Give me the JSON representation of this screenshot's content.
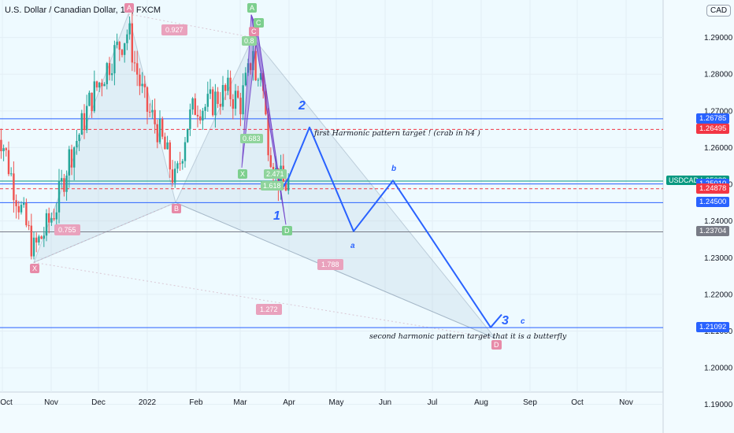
{
  "header": {
    "title": "U.S. Dollar / Canadian Dollar, 1D, FXCM",
    "currency_badge": "CAD"
  },
  "chart_data": {
    "type": "line",
    "x_tick_labels": [
      "Oct",
      "Nov",
      "Dec",
      "2022",
      "Feb",
      "Mar",
      "Apr",
      "May",
      "Jun",
      "Jul",
      "Aug",
      "Sep",
      "Oct",
      "Nov"
    ],
    "y_ticks": [
      1.19,
      1.2,
      1.21,
      1.22,
      1.23,
      1.24,
      1.25,
      1.26,
      1.27,
      1.28,
      1.29
    ],
    "ylim": [
      1.188,
      1.2985
    ],
    "candles": {
      "start_date": "2021-09-27",
      "anchor_closes": [
        [
          "2021-09-27",
          1.266
        ],
        [
          "2021-10-01",
          1.262
        ],
        [
          "2021-10-08",
          1.25
        ],
        [
          "2021-10-15",
          1.24
        ],
        [
          "2021-10-21",
          1.232
        ],
        [
          "2021-10-29",
          1.238
        ],
        [
          "2021-11-05",
          1.245
        ],
        [
          "2021-11-12",
          1.257
        ],
        [
          "2021-11-19",
          1.264
        ],
        [
          "2021-11-26",
          1.273
        ],
        [
          "2021-12-03",
          1.279
        ],
        [
          "2021-12-10",
          1.285
        ],
        [
          "2021-12-16",
          1.289
        ],
        [
          "2021-12-20",
          1.292
        ],
        [
          "2021-12-24",
          1.283
        ],
        [
          "2021-12-31",
          1.271
        ],
        [
          "2022-01-07",
          1.266
        ],
        [
          "2022-01-14",
          1.257
        ],
        [
          "2022-01-19",
          1.25
        ],
        [
          "2022-01-26",
          1.266
        ],
        [
          "2022-02-01",
          1.272
        ],
        [
          "2022-02-08",
          1.271
        ],
        [
          "2022-02-15",
          1.274
        ],
        [
          "2022-02-22",
          1.275
        ],
        [
          "2022-03-01",
          1.272
        ],
        [
          "2022-03-07",
          1.281
        ],
        [
          "2022-03-09",
          1.289
        ],
        [
          "2022-03-11",
          1.276
        ],
        [
          "2022-03-14",
          1.282
        ],
        [
          "2022-03-18",
          1.264
        ],
        [
          "2022-03-24",
          1.252
        ],
        [
          "2022-03-28",
          1.25
        ],
        [
          "2022-03-31",
          1.25
        ],
        [
          "2022-04-01",
          1.2509
        ]
      ]
    },
    "price_levels": [
      {
        "value": 1.26785,
        "label": "1.26785",
        "color": "#2962ff",
        "style": "solid"
      },
      {
        "value": 1.26495,
        "label": "1.26495",
        "color": "#f23645",
        "style": "dashed"
      },
      {
        "value": 1.25088,
        "label": "1.25088",
        "color": "#089981",
        "style": "solid",
        "tag": "USDCAD"
      },
      {
        "value": 1.2501,
        "label": "1.25010",
        "color": "#2962ff",
        "style": "solid"
      },
      {
        "value": 1.24878,
        "label": "1.24878",
        "color": "#f23645",
        "style": "dashed"
      },
      {
        "value": 1.245,
        "label": "1.24500",
        "color": "#2962ff",
        "style": "solid"
      },
      {
        "value": 1.23704,
        "label": "1.23704",
        "color": "#787b86",
        "style": "solid"
      },
      {
        "value": 1.21092,
        "label": "1.21092",
        "color": "#2962ff",
        "style": "solid"
      }
    ],
    "big_pattern_points": [
      {
        "label": "X",
        "date": "2021-10-21",
        "value": 1.2287
      },
      {
        "label": "A",
        "date": "2021-12-20",
        "value": 1.2964
      },
      {
        "label": "B",
        "date": "2022-01-19",
        "value": 1.245
      },
      {
        "label": "C",
        "date": "2022-03-09",
        "value": 1.29
      },
      {
        "label": "D",
        "date": "2022-08-10",
        "value": 1.208
      }
    ],
    "big_pattern_ratios": [
      {
        "label": "0.927",
        "date": "2022-01-17",
        "value": 1.292
      },
      {
        "label": "0.755",
        "date": "2021-11-10",
        "value": 1.2375
      },
      {
        "label": "1.788",
        "date": "2022-04-26",
        "value": 1.2282
      },
      {
        "label": "1.272",
        "date": "2022-03-18",
        "value": 1.2159
      }
    ],
    "small_pattern_points": [
      {
        "label": "A",
        "date": "2022-03-08",
        "value": 1.2962
      },
      {
        "label": "X",
        "date": "2022-03-02",
        "value": 1.2545
      },
      {
        "label": "C",
        "date": "2022-03-12",
        "value": 1.292
      },
      {
        "label": "D",
        "date": "2022-03-30",
        "value": 1.239
      }
    ],
    "small_pattern_ratios": [
      {
        "label": "0.8",
        "date": "2022-03-08",
        "value": 1.2888
      },
      {
        "label": "0.683",
        "date": "2022-03-07",
        "value": 1.2623
      },
      {
        "label": "2.471",
        "date": "2022-03-22",
        "value": 1.2525
      },
      {
        "label": "1.618",
        "date": "2022-03-20",
        "value": 1.2493
      }
    ],
    "projection": [
      [
        "2022-03-28",
        1.249
      ],
      [
        "2022-04-01",
        1.252
      ],
      [
        "2022-04-14",
        1.2655
      ],
      [
        "2022-05-12",
        1.2372
      ],
      [
        "2022-06-06",
        1.251
      ],
      [
        "2022-08-07",
        1.211
      ],
      [
        "2022-08-14",
        1.2145
      ]
    ],
    "wave_labels": [
      {
        "label": "2",
        "date": "2022-04-09",
        "value": 1.271,
        "size": "big"
      },
      {
        "label": "1",
        "date": "2022-03-24",
        "value": 1.241,
        "size": "big"
      },
      {
        "label": "3",
        "date": "2022-08-16",
        "value": 1.2125,
        "size": "big"
      },
      {
        "label": "b",
        "date": "2022-06-07",
        "value": 1.254,
        "size": "small"
      },
      {
        "label": "a",
        "date": "2022-05-12",
        "value": 1.233,
        "size": "small"
      },
      {
        "label": "c",
        "date": "2022-08-28",
        "value": 1.2125,
        "size": "small"
      }
    ],
    "annotations": [
      {
        "text": "first Harmonic pattern target ! (crab in h4 )",
        "date": "2022-04-17",
        "value": 1.2638
      },
      {
        "text": "second harmonic pattern target that it is a butterfly",
        "date": "2022-05-22",
        "value": 1.2083
      }
    ]
  }
}
